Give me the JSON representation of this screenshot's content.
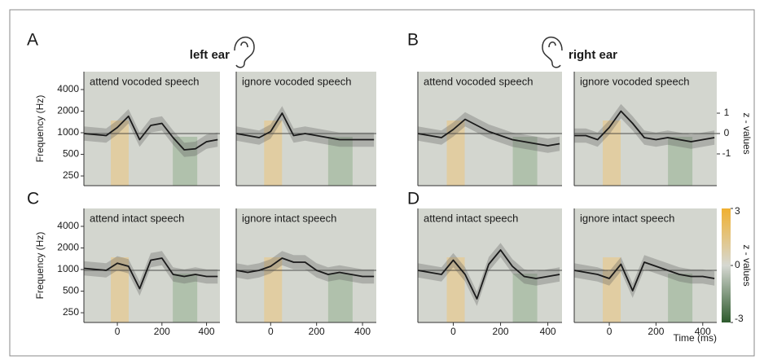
{
  "chart_data": {
    "type": "line",
    "panel_letters": [
      "A",
      "B",
      "C",
      "D"
    ],
    "ear_labels": [
      "left ear",
      "right ear"
    ],
    "xlabel": "Time (ms)",
    "freq_label": "Frequency (Hz)",
    "z_label": "z - values",
    "x": [
      -150,
      -100,
      -50,
      0,
      50,
      100,
      150,
      200,
      250,
      300,
      350,
      400,
      450
    ],
    "xlim": [
      -150,
      460
    ],
    "xticks": [
      0,
      200,
      400
    ],
    "ylim": [
      -2.56,
      3.04
    ],
    "yticks": [
      -1,
      0,
      1
    ],
    "freq_lim": [
      183,
      7100
    ],
    "freq_ticks": [
      250,
      500,
      1000,
      2000,
      4000
    ],
    "freq_log": true,
    "colorbar_lim": [
      -3,
      3
    ],
    "colorbar_ticks": [
      -3,
      0,
      3
    ],
    "series": [
      {
        "name": "attend vocoded speech",
        "color": "#1a1a1a",
        "values": [
          0,
          -0.05,
          -0.1,
          0.3,
          0.85,
          -0.3,
          0.4,
          0.5,
          -0.2,
          -0.8,
          -0.75,
          -0.4,
          -0.3
        ],
        "error": 0.35
      },
      {
        "name": "ignore vocoded speech",
        "color": "#1a1a1a",
        "values": [
          0,
          -0.1,
          -0.2,
          0.1,
          1.0,
          -0.1,
          0,
          -0.1,
          -0.2,
          -0.3,
          -0.3,
          -0.3,
          -0.3
        ],
        "error": 0.35
      },
      {
        "name": "attend vocoded speech",
        "color": "#1a1a1a",
        "values": [
          0,
          -0.1,
          -0.2,
          0.2,
          0.7,
          0.4,
          0.1,
          -0.1,
          -0.3,
          -0.4,
          -0.5,
          -0.6,
          -0.5
        ],
        "error": 0.35
      },
      {
        "name": "ignore vocoded speech",
        "color": "#1a1a1a",
        "values": [
          -0.1,
          -0.1,
          -0.3,
          0.3,
          1.1,
          0.5,
          -0.2,
          -0.3,
          -0.2,
          -0.3,
          -0.4,
          -0.3,
          -0.2
        ],
        "error": 0.35
      },
      {
        "name": "attend intact speech",
        "color": "#1a1a1a",
        "values": [
          0.1,
          0.05,
          0,
          0.35,
          0.2,
          -0.9,
          0.5,
          0.6,
          -0.2,
          -0.3,
          -0.2,
          -0.3,
          -0.3
        ],
        "error": 0.35
      },
      {
        "name": "ignore intact speech",
        "color": "#1a1a1a",
        "values": [
          0,
          -0.1,
          0,
          0.2,
          0.6,
          0.4,
          0.4,
          0,
          -0.2,
          -0.1,
          -0.2,
          -0.3,
          -0.3
        ],
        "error": 0.35
      },
      {
        "name": "attend intact speech",
        "color": "#1a1a1a",
        "values": [
          0,
          -0.1,
          -0.2,
          0.5,
          -0.2,
          -1.4,
          0.3,
          1.0,
          0.2,
          -0.3,
          -0.4,
          -0.3,
          -0.2
        ],
        "error": 0.35
      },
      {
        "name": "ignore intact speech",
        "color": "#1a1a1a",
        "values": [
          0,
          -0.1,
          -0.2,
          -0.4,
          0.3,
          -1.0,
          0.4,
          0.2,
          0,
          -0.2,
          -0.3,
          -0.3,
          -0.4
        ],
        "error": 0.35
      }
    ]
  }
}
